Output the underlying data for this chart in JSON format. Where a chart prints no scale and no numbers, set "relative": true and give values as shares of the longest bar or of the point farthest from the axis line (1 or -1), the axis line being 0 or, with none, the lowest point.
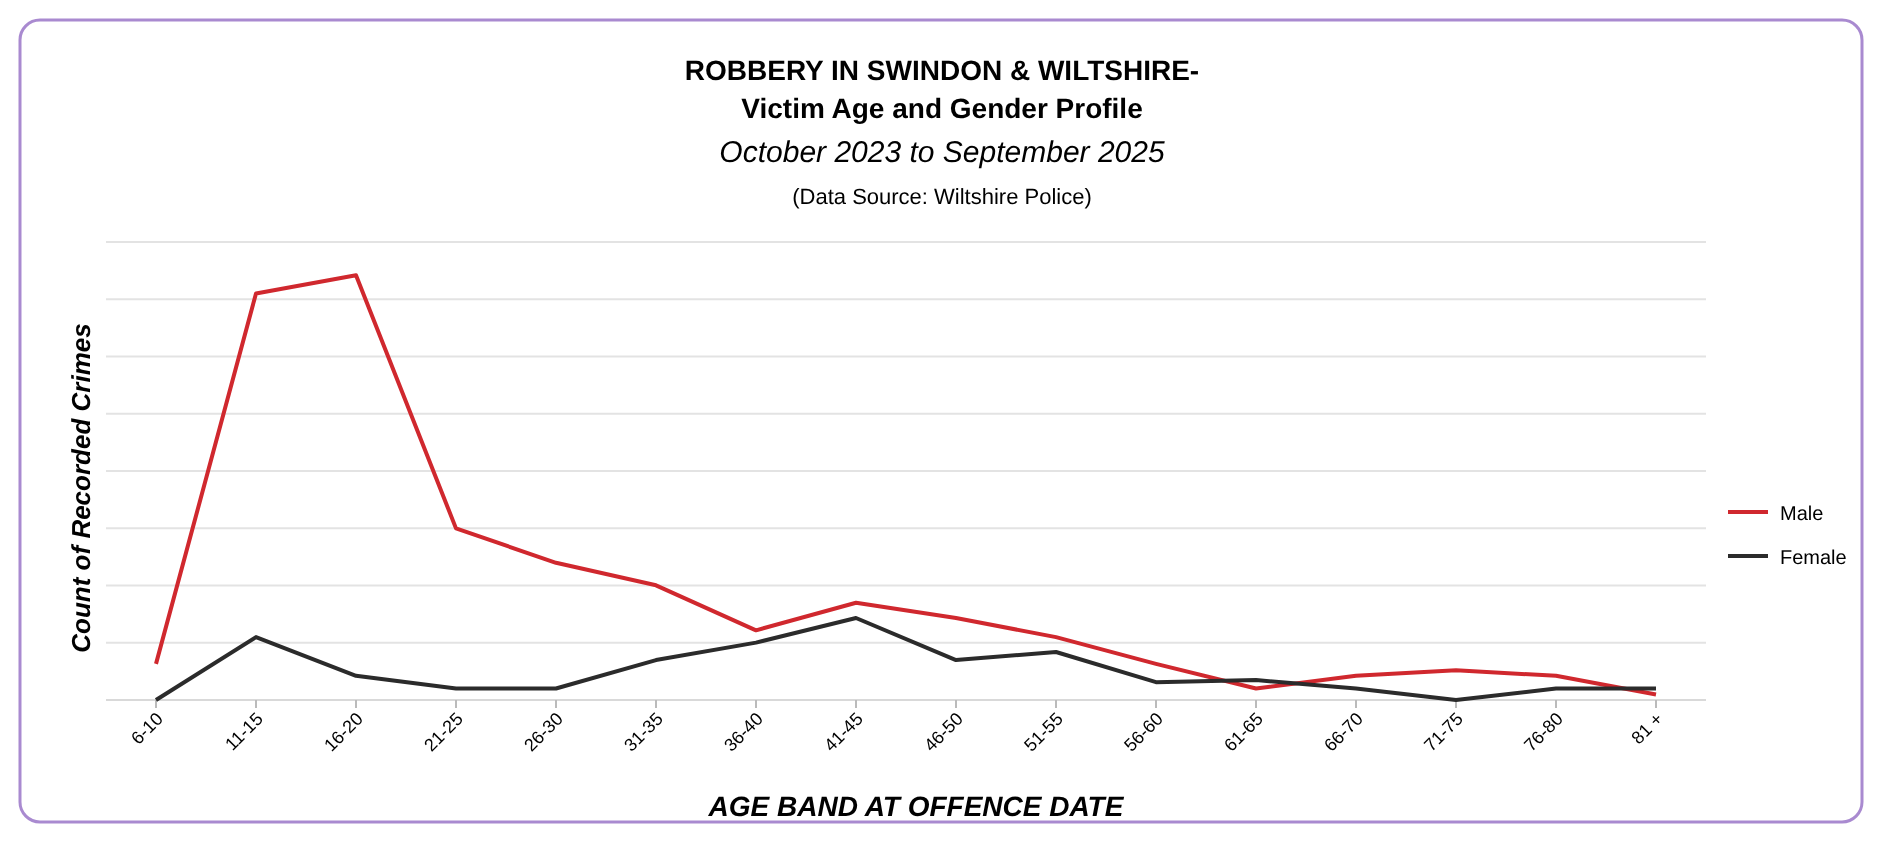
{
  "chart_data": {
    "type": "line",
    "title": "ROBBERY IN SWINDON & WILTSHIRE-\nVictim Age and Gender Profile",
    "subtitle": "October 2023 to September 2025",
    "annotations": [
      "(Data Source:  Wiltshire Police)"
    ],
    "xlabel": "AGE BAND AT OFFENCE DATE",
    "ylabel": "Count of Recorded Crimes",
    "relative": true,
    "grid": true,
    "legend": "right",
    "marker": "none",
    "line_style": "solid",
    "categories": [
      "6-10",
      "11-15",
      "16-20",
      "21-25",
      "26-30",
      "31-35",
      "36-40",
      "41-45",
      "46-50",
      "51-55",
      "56-60",
      "61-65",
      "66-70",
      "71-75",
      "76-80",
      "81 +"
    ],
    "series": [
      {
        "name": "Male",
        "color": "#d0282e",
        "values": [
          0.085,
          0.957,
          1,
          0.404,
          0.323,
          0.27,
          0.164,
          0.229,
          0.193,
          0.148,
          0.085,
          0.027,
          0.057,
          0.07,
          0.057,
          0.013
        ]
      },
      {
        "name": "Female",
        "color": "#2b2b2b",
        "values": [
          0,
          0.148,
          0.057,
          0.027,
          0.027,
          0.094,
          0.135,
          0.193,
          0.094,
          0.113,
          0.042,
          0.047,
          0.027,
          0,
          0.027,
          0.027
        ]
      }
    ]
  }
}
